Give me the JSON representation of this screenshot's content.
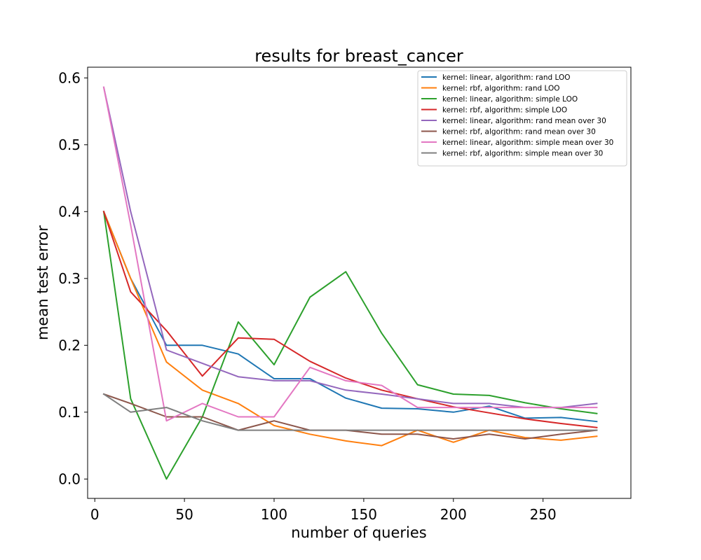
{
  "chart_data": {
    "type": "line",
    "title": "results for breast_cancer",
    "xlabel": "number of queries",
    "ylabel": "mean test error",
    "xlim": [
      -4,
      299
    ],
    "ylim": [
      -0.029,
      0.616
    ],
    "xticks": [
      0,
      50,
      100,
      150,
      200,
      250
    ],
    "yticks": [
      0.0,
      0.1,
      0.2,
      0.3,
      0.4,
      0.5,
      0.6
    ],
    "xtick_labels": [
      "0",
      "50",
      "100",
      "150",
      "200",
      "250"
    ],
    "ytick_labels": [
      "0.0",
      "0.1",
      "0.2",
      "0.3",
      "0.4",
      "0.5",
      "0.6"
    ],
    "grid": false,
    "legend_position": "top-right",
    "x": [
      5,
      20,
      40,
      60,
      80,
      100,
      120,
      140,
      160,
      180,
      200,
      220,
      240,
      260,
      280
    ],
    "series": [
      {
        "name": "kernel: linear, algorithm: rand LOO",
        "color": "#1f77b4",
        "values": [
          0.4,
          0.3,
          0.2,
          0.2,
          0.187,
          0.15,
          0.15,
          0.121,
          0.106,
          0.105,
          0.1,
          0.109,
          0.091,
          0.092,
          0.086
        ]
      },
      {
        "name": "kernel: rbf, algorithm: rand LOO",
        "color": "#ff7f0e",
        "values": [
          0.4,
          0.3,
          0.175,
          0.133,
          0.113,
          0.08,
          0.067,
          0.057,
          0.05,
          0.073,
          0.055,
          0.073,
          0.062,
          0.058,
          0.064
        ]
      },
      {
        "name": "kernel: linear, algorithm: simple LOO",
        "color": "#2ca02c",
        "values": [
          0.4,
          0.12,
          0.0,
          0.093,
          0.235,
          0.171,
          0.272,
          0.31,
          0.218,
          0.141,
          0.127,
          0.125,
          0.114,
          0.105,
          0.098
        ]
      },
      {
        "name": "kernel: rbf, algorithm: simple LOO",
        "color": "#d62728",
        "values": [
          0.4,
          0.28,
          0.222,
          0.154,
          0.211,
          0.209,
          0.176,
          0.151,
          0.133,
          0.12,
          0.108,
          0.099,
          0.09,
          0.083,
          0.077
        ]
      },
      {
        "name": "kernel: linear, algorithm: rand mean over 30",
        "color": "#9467bd",
        "values": [
          0.586,
          0.4,
          0.193,
          0.173,
          0.153,
          0.147,
          0.147,
          0.133,
          0.127,
          0.12,
          0.113,
          0.113,
          0.107,
          0.107,
          0.113
        ]
      },
      {
        "name": "kernel: rbf, algorithm: rand mean over 30",
        "color": "#8c564b",
        "values": [
          0.127,
          0.113,
          0.093,
          0.093,
          0.073,
          0.087,
          0.073,
          0.073,
          0.067,
          0.067,
          0.06,
          0.067,
          0.06,
          0.067,
          0.073
        ]
      },
      {
        "name": "kernel: linear, algorithm: simple mean over 30",
        "color": "#e377c2",
        "values": [
          0.586,
          0.38,
          0.087,
          0.113,
          0.093,
          0.093,
          0.167,
          0.147,
          0.14,
          0.107,
          0.107,
          0.107,
          0.107,
          0.107,
          0.107
        ]
      },
      {
        "name": "kernel: rbf, algorithm: simple mean over 30",
        "color": "#7f7f7f",
        "values": [
          0.127,
          0.1,
          0.107,
          0.087,
          0.073,
          0.073,
          0.073,
          0.073,
          0.073,
          0.073,
          0.073,
          0.073,
          0.073,
          0.073,
          0.073
        ]
      }
    ]
  }
}
